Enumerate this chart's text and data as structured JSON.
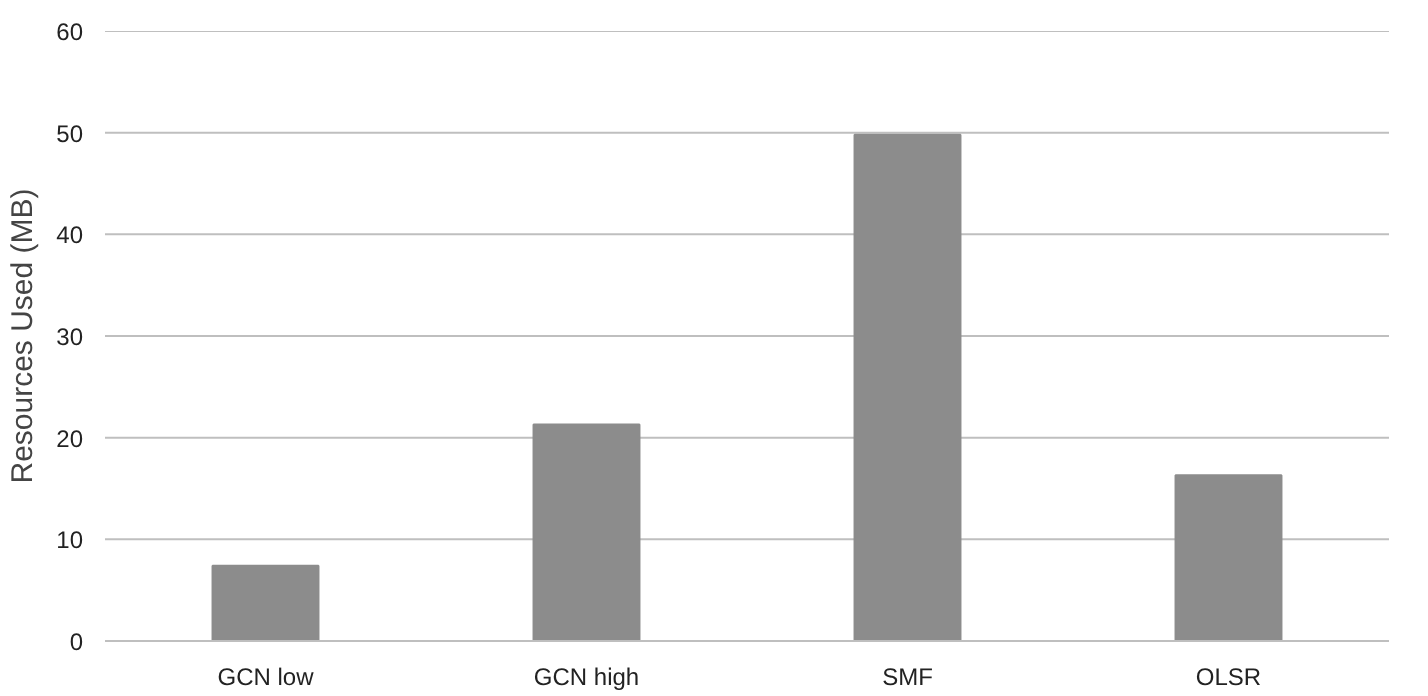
{
  "chart_data": {
    "type": "bar",
    "ylabel": "Resources Used (MB)",
    "categories": [
      "GCN low",
      "GCN high",
      "SMF",
      "OLSR"
    ],
    "values": [
      7.4,
      21.3,
      49.8,
      16.3
    ],
    "color": "#8c8c8c",
    "ylim": [
      0,
      60
    ],
    "yticks": [
      0,
      10,
      20,
      30,
      40,
      50,
      60
    ],
    "grid": "y"
  }
}
